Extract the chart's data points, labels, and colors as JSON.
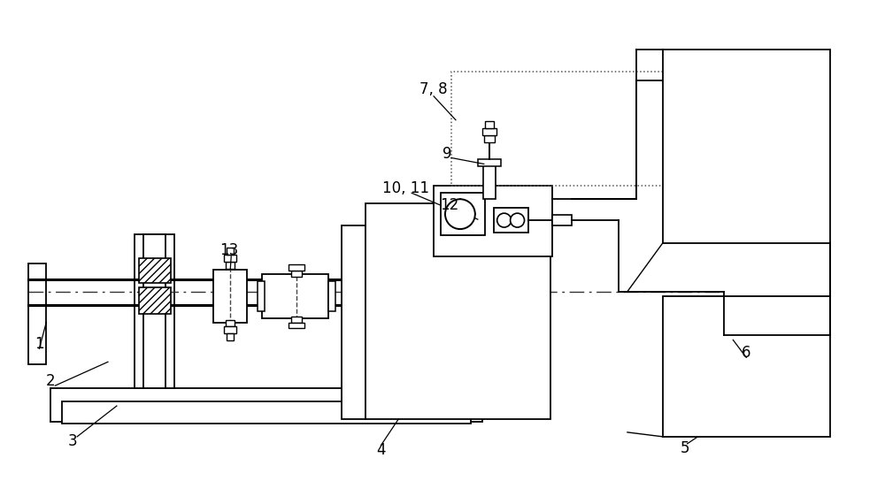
{
  "bg_color": "#ffffff",
  "lc": "#000000",
  "figsize": [
    10.0,
    5.44
  ],
  "dpi": 100
}
